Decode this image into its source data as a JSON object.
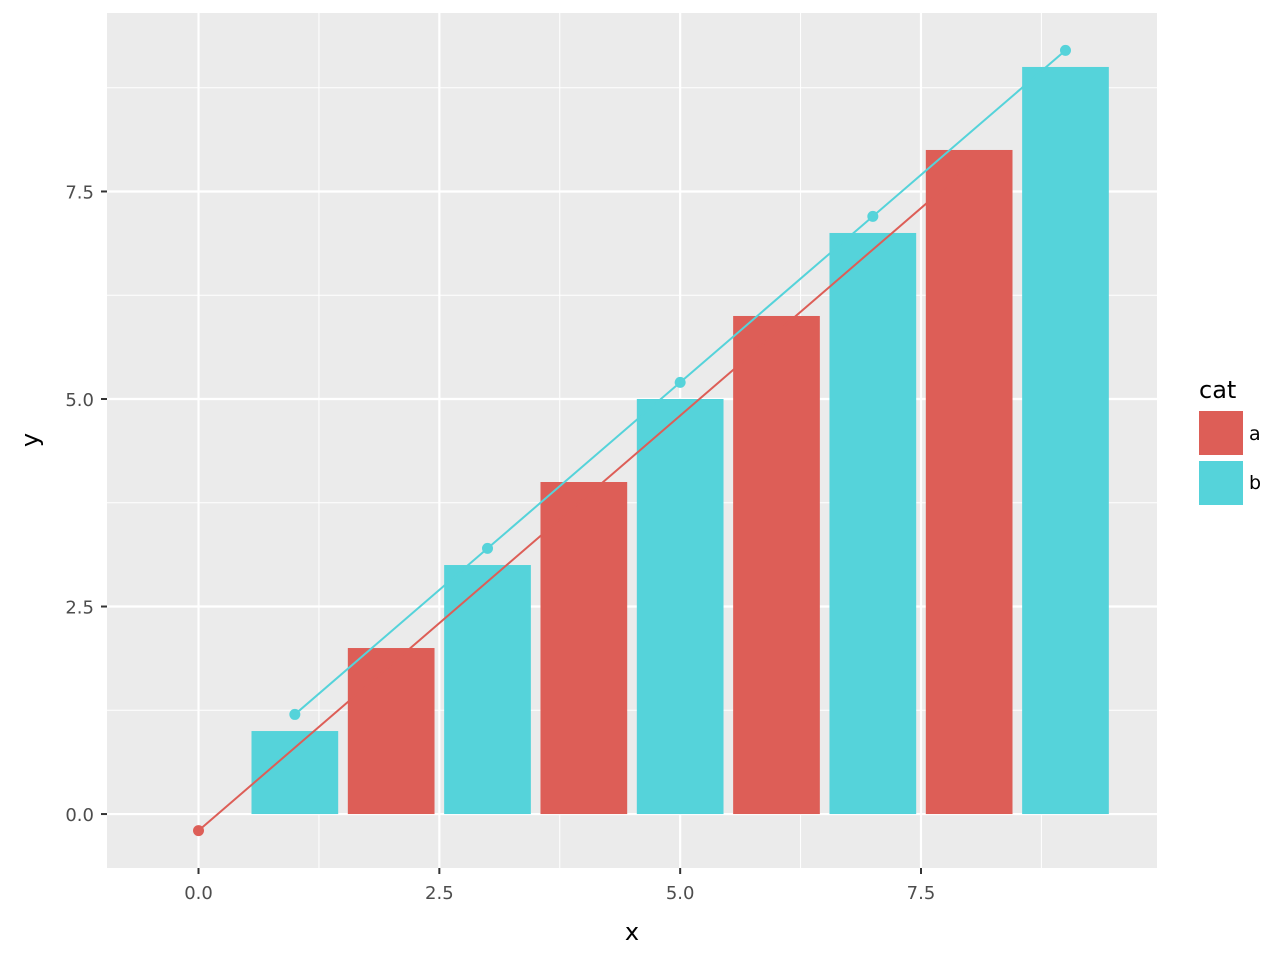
{
  "chart_data": {
    "type": "bar",
    "title": "",
    "xlabel": "x",
    "ylabel": "y",
    "xlim": [
      -0.95,
      9.95
    ],
    "ylim": [
      -0.65,
      9.65
    ],
    "x_ticks": [
      0.0,
      2.5,
      5.0,
      7.5
    ],
    "x_tick_labels": [
      "0.0",
      "2.5",
      "5.0",
      "7.5"
    ],
    "y_ticks": [
      0.0,
      2.5,
      5.0,
      7.5
    ],
    "y_tick_labels": [
      "0.0",
      "2.5",
      "5.0",
      "7.5"
    ],
    "grid": true,
    "legend": {
      "title": "cat",
      "placement": "right",
      "items": [
        {
          "label": "a",
          "color": "#dd5e57"
        },
        {
          "label": "b",
          "color": "#55d3da"
        }
      ]
    },
    "bars": [
      {
        "x": 1,
        "y": 1,
        "cat": "b"
      },
      {
        "x": 2,
        "y": 2,
        "cat": "a"
      },
      {
        "x": 3,
        "y": 3,
        "cat": "b"
      },
      {
        "x": 4,
        "y": 4,
        "cat": "a"
      },
      {
        "x": 5,
        "y": 5,
        "cat": "b"
      },
      {
        "x": 6,
        "y": 6,
        "cat": "a"
      },
      {
        "x": 7,
        "y": 7,
        "cat": "b"
      },
      {
        "x": 8,
        "y": 8,
        "cat": "a"
      },
      {
        "x": 9,
        "y": 9,
        "cat": "b"
      }
    ],
    "bar_width": 0.9,
    "series": [
      {
        "cat": "a",
        "type": "line+points",
        "x": [
          0,
          2,
          4,
          6,
          8
        ],
        "y": [
          -0.2,
          1.8,
          3.8,
          5.8,
          7.8
        ],
        "visible_points": [
          0
        ]
      },
      {
        "cat": "b",
        "type": "line+points",
        "x": [
          1,
          3,
          5,
          7,
          9
        ],
        "y": [
          1.2,
          3.2,
          5.2,
          7.2,
          9.2
        ],
        "visible_points": [
          0,
          1,
          2,
          3,
          4
        ]
      }
    ]
  },
  "colors": {
    "panel": "#ebebeb",
    "grid_major": "#ffffff",
    "grid_minor": "#f5f5f5",
    "tick": "#333333"
  }
}
